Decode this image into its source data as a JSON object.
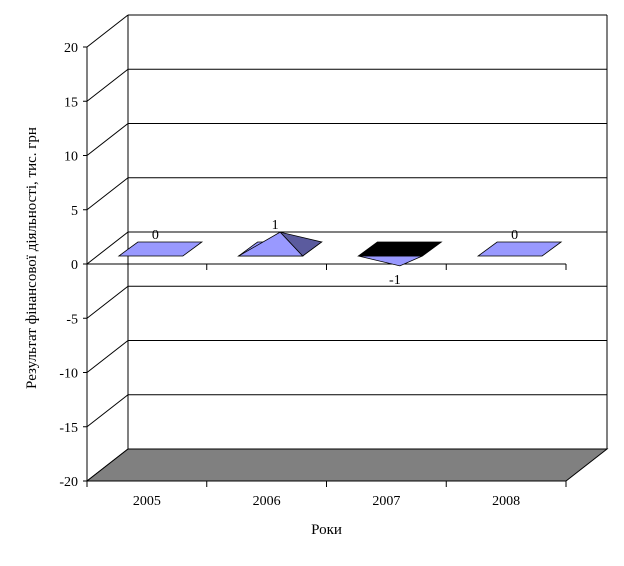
{
  "chart_data": {
    "type": "bar",
    "subtype": "3d-pyramid",
    "title": "",
    "xlabel": "Роки",
    "ylabel": "Результат фінансової діяльності, тис. грн",
    "categories": [
      "2005",
      "2006",
      "2007",
      "2008"
    ],
    "series": [
      {
        "values": [
          0,
          1,
          -1,
          0
        ],
        "data_labels": [
          "0",
          "1",
          "-1",
          "0"
        ]
      }
    ],
    "ylim": [
      -20,
      20
    ],
    "yticks": [
      -20,
      -15,
      -10,
      -5,
      0,
      5,
      10,
      15,
      20
    ],
    "ytick_labels": [
      "-20",
      "-15",
      "-10",
      "-5",
      "0",
      "5",
      "10",
      "15",
      "20"
    ],
    "grid": true,
    "legend": "none",
    "colors": {
      "bar_front": "#9999ff",
      "bar_side": "#5b5b9e",
      "bar_negative_top": "#000000",
      "floor": "#808080",
      "gridline": "#000000"
    }
  }
}
